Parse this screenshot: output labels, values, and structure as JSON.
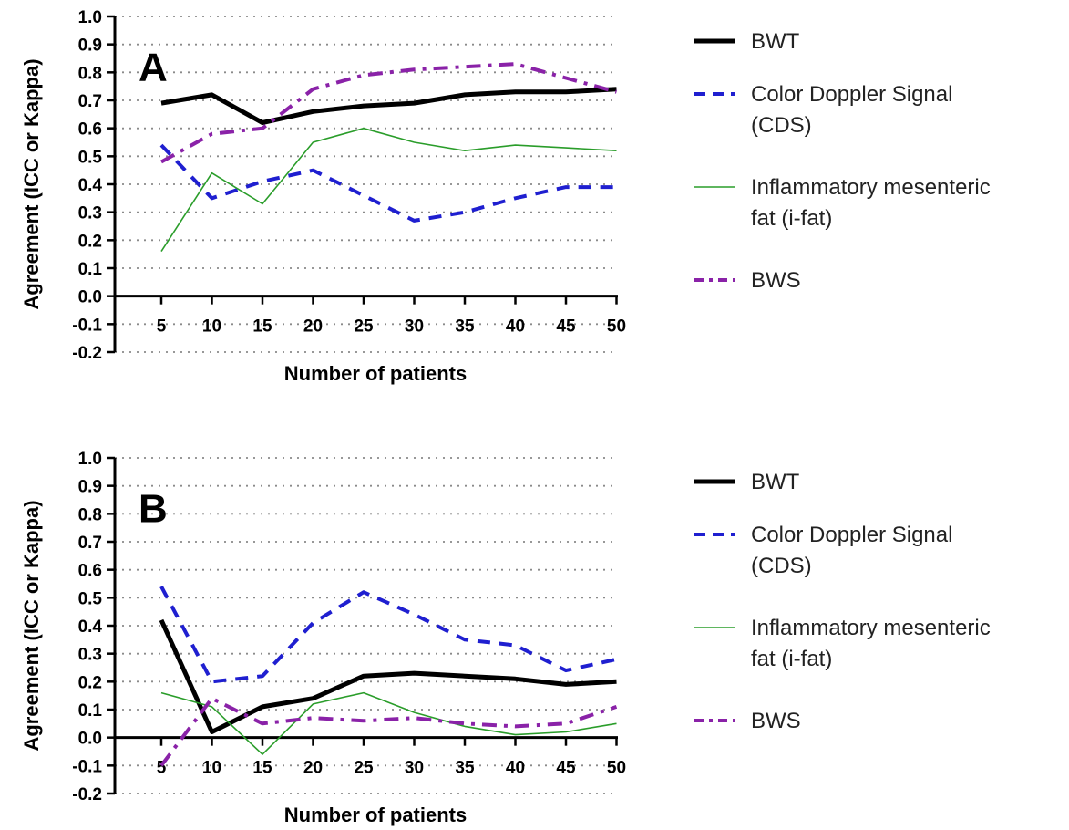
{
  "chart_data": [
    {
      "type": "line",
      "panel_label": "A",
      "xlabel": "Number of patients",
      "ylabel": "Agreement (ICC or Kappa)",
      "x": [
        5,
        10,
        15,
        20,
        25,
        30,
        35,
        40,
        45,
        50
      ],
      "ylim": [
        -0.2,
        1.0
      ],
      "yticks": [
        "1.0",
        "0.9",
        "0.8",
        "0.7",
        "0.6",
        "0.5",
        "0.4",
        "0.3",
        "0.2",
        "0.1",
        "0.0",
        "-0.1",
        "-0.2"
      ],
      "grid": "horizontal dotted",
      "legend_position": "right",
      "series": [
        {
          "name": "BWT",
          "color": "#000000",
          "style": "solid-thick",
          "values": [
            0.69,
            0.72,
            0.62,
            0.66,
            0.68,
            0.69,
            0.72,
            0.73,
            0.73,
            0.74
          ]
        },
        {
          "name": "Color Doppler Signal (CDS)",
          "legend_lines": [
            "Color Doppler Signal",
            "(CDS)"
          ],
          "color": "#1f1fd0",
          "style": "dashed",
          "values": [
            0.54,
            0.35,
            0.41,
            0.45,
            0.36,
            0.27,
            0.3,
            0.35,
            0.39,
            0.39
          ]
        },
        {
          "name": "Inflammatory mesenteric fat (i-fat)",
          "legend_lines": [
            "Inflammatory mesenteric",
            "fat (i-fat)"
          ],
          "color": "#2a9d2a",
          "style": "solid-thin",
          "values": [
            0.16,
            0.44,
            0.33,
            0.55,
            0.6,
            0.55,
            0.52,
            0.54,
            0.53,
            0.52
          ]
        },
        {
          "name": "BWS",
          "color": "#8a22a8",
          "style": "dash-dot",
          "values": [
            0.48,
            0.58,
            0.6,
            0.74,
            0.79,
            0.81,
            0.82,
            0.83,
            0.78,
            0.73
          ]
        }
      ]
    },
    {
      "type": "line",
      "panel_label": "B",
      "xlabel": "Number of patients",
      "ylabel": "Agreement (ICC or Kappa)",
      "x": [
        5,
        10,
        15,
        20,
        25,
        30,
        35,
        40,
        45,
        50
      ],
      "ylim": [
        -0.2,
        1.0
      ],
      "yticks": [
        "1.0",
        "0.9",
        "0.8",
        "0.7",
        "0.6",
        "0.5",
        "0.4",
        "0.3",
        "0.2",
        "0.1",
        "0.0",
        "-0.1",
        "-0.2"
      ],
      "grid": "horizontal dotted",
      "legend_position": "right",
      "series": [
        {
          "name": "BWT",
          "color": "#000000",
          "style": "solid-thick",
          "values": [
            0.42,
            0.02,
            0.11,
            0.14,
            0.22,
            0.23,
            0.22,
            0.21,
            0.19,
            0.2
          ]
        },
        {
          "name": "Color Doppler Signal (CDS)",
          "legend_lines": [
            "Color Doppler Signal",
            "(CDS)"
          ],
          "color": "#1f1fd0",
          "style": "dashed",
          "values": [
            0.54,
            0.2,
            0.22,
            0.41,
            0.52,
            0.44,
            0.35,
            0.33,
            0.24,
            0.28
          ]
        },
        {
          "name": "Inflammatory mesenteric fat (i-fat)",
          "legend_lines": [
            "Inflammatory mesenteric",
            "fat (i-fat)"
          ],
          "color": "#2a9d2a",
          "style": "solid-thin",
          "values": [
            0.16,
            0.11,
            -0.06,
            0.12,
            0.16,
            0.09,
            0.04,
            0.01,
            0.02,
            0.05
          ]
        },
        {
          "name": "BWS",
          "color": "#8a22a8",
          "style": "dash-dot",
          "values": [
            -0.1,
            0.14,
            0.05,
            0.07,
            0.06,
            0.07,
            0.05,
            0.04,
            0.05,
            0.11
          ]
        }
      ]
    }
  ]
}
